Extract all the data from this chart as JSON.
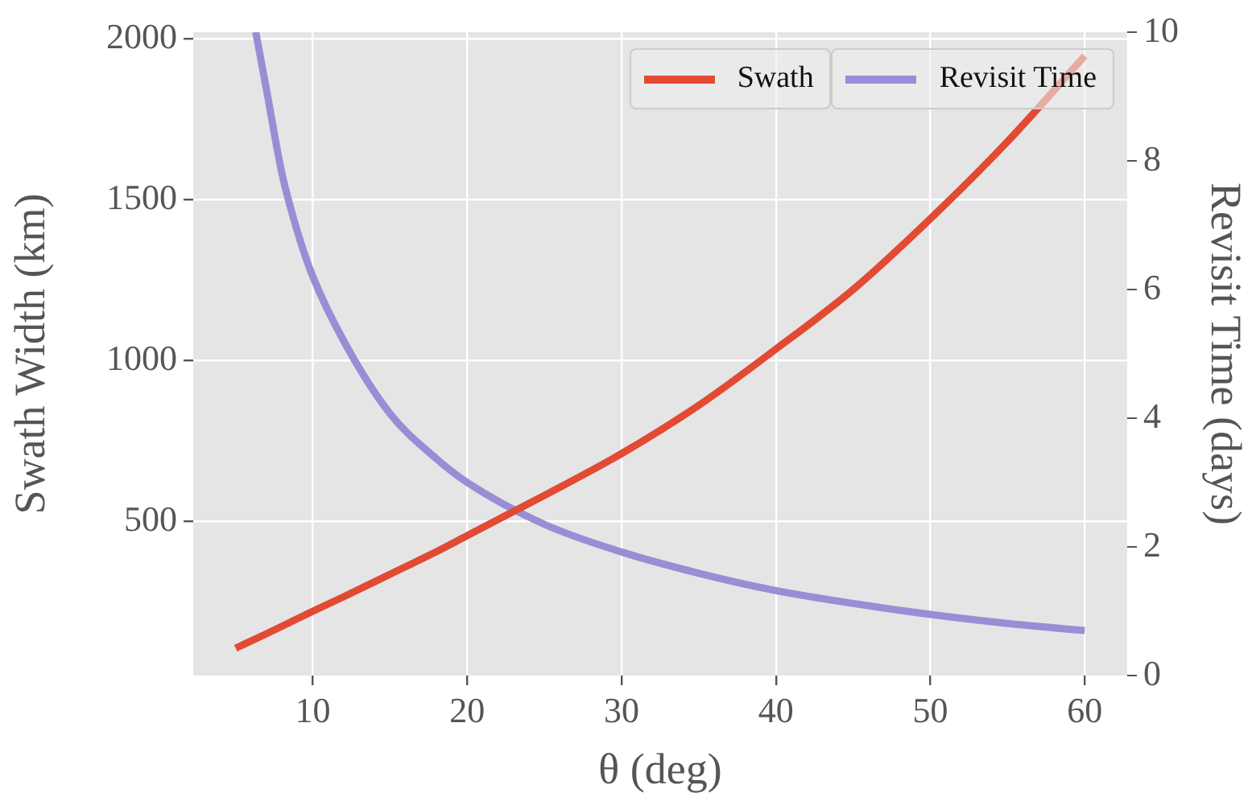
{
  "chart_data": {
    "type": "line",
    "xlabel": "θ (deg)",
    "ylabel": "Swath Width (km)",
    "y2label": "Revisit Time (days)",
    "xlim": [
      2.25,
      62.75
    ],
    "xticks": [
      10,
      20,
      30,
      40,
      50,
      60
    ],
    "ylim": [
      20,
      2020
    ],
    "yticks": [
      500,
      1000,
      1500,
      2000
    ],
    "y2lim": [
      0,
      10
    ],
    "y2ticks": [
      0,
      2,
      4,
      6,
      8,
      10
    ],
    "grid": true,
    "legend": "top right",
    "line_style": "solid",
    "marker": "none",
    "series": [
      {
        "name": "Swath",
        "color": "#e24a33",
        "axis": "y",
        "x": [
          5,
          7,
          10,
          12,
          15,
          18,
          20,
          25,
          30,
          35,
          40,
          45,
          50,
          55,
          60
        ],
        "values": [
          105,
          150,
          220,
          265,
          335,
          405,
          455,
          580,
          710,
          860,
          1035,
          1220,
          1440,
          1680,
          1946
        ]
      },
      {
        "name": "Revisit Time",
        "color": "#988ed5",
        "axis": "y2",
        "x": [
          6.3,
          7,
          8,
          9,
          10,
          12,
          15,
          18,
          20,
          25,
          30,
          35,
          40,
          45,
          50,
          55,
          60
        ],
        "values": [
          10,
          9.1,
          7.8,
          6.9,
          6.2,
          5.2,
          4.07,
          3.37,
          3.0,
          2.35,
          1.92,
          1.59,
          1.32,
          1.12,
          0.95,
          0.81,
          0.7
        ]
      }
    ]
  }
}
